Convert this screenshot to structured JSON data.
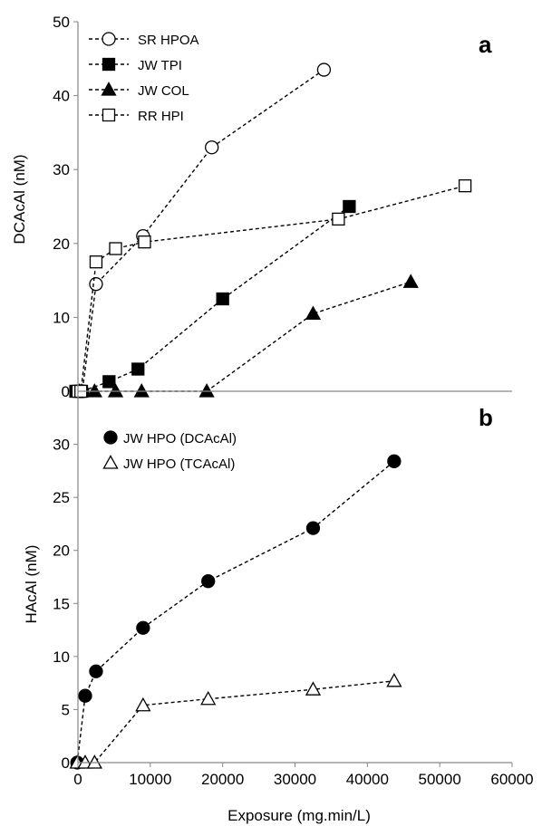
{
  "chart_data": [
    {
      "panel": "a",
      "type": "line",
      "ylabel": "DCAcAl (nM)",
      "xlabel": "",
      "ylim": [
        0,
        50
      ],
      "yticks": [
        0,
        10,
        20,
        30,
        40,
        50
      ],
      "xlim": [
        0,
        60000
      ],
      "legend_position": "top-left",
      "series": [
        {
          "name": "SR HPOA",
          "marker": "circle-open",
          "color": "#000000",
          "x": [
            0,
            300,
            600,
            2500,
            9000,
            18500,
            34000
          ],
          "y": [
            0,
            0,
            0,
            14.5,
            21,
            33,
            43.5
          ]
        },
        {
          "name": "JW TPI",
          "marker": "square-filled",
          "color": "#000000",
          "x": [
            -300,
            200,
            500,
            4300,
            8300,
            20000,
            37500
          ],
          "y": [
            0,
            0,
            0,
            1.3,
            3,
            12.5,
            25
          ]
        },
        {
          "name": "JW COL",
          "marker": "triangle-filled",
          "color": "#000000",
          "x": [
            200,
            500,
            2300,
            5200,
            8800,
            17800,
            32500,
            46000
          ],
          "y": [
            0,
            0,
            0,
            0,
            0,
            0,
            10.5,
            14.8
          ]
        },
        {
          "name": "RR HPI",
          "marker": "square-open",
          "color": "#000000",
          "x": [
            0,
            400,
            2500,
            5200,
            9200,
            36000,
            53500
          ],
          "y": [
            0,
            0,
            17.5,
            19.3,
            20.2,
            23.3,
            27.8
          ]
        }
      ]
    },
    {
      "panel": "b",
      "type": "line",
      "ylabel": "HAcAl (nM)",
      "xlabel": "Exposure (mg.min/L)",
      "ylim": [
        0,
        35
      ],
      "yticks": [
        0,
        5,
        10,
        15,
        20,
        25,
        30
      ],
      "xlim": [
        0,
        60000
      ],
      "xticks": [
        0,
        10000,
        20000,
        30000,
        40000,
        50000,
        60000
      ],
      "xtick_labels": [
        "0",
        "10000",
        "20000",
        "30000",
        "40000",
        "50000",
        "60000"
      ],
      "legend_position": "top-left",
      "series": [
        {
          "name": "JW HPO (DCAcAl)",
          "marker": "circle-filled",
          "color": "#000000",
          "x": [
            -100,
            1000,
            2500,
            9000,
            18000,
            32500,
            43700
          ],
          "y": [
            0,
            6.3,
            8.6,
            12.7,
            17.1,
            22.1,
            28.4
          ]
        },
        {
          "name": "JW HPO (TCAcAl)",
          "marker": "triangle-open",
          "color": "#000000",
          "x": [
            -100,
            1000,
            2300,
            9000,
            18000,
            32500,
            43700
          ],
          "y": [
            0,
            0,
            0,
            5.4,
            6,
            6.9,
            7.7
          ]
        }
      ]
    }
  ]
}
